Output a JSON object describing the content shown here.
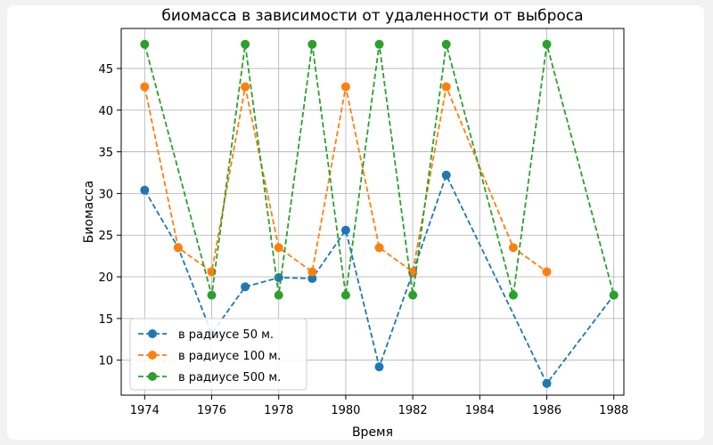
{
  "chart_data": {
    "type": "line",
    "title": "биомасса в зависимости от удаленности от выброса",
    "xlabel": "Время",
    "ylabel": "Биомасса",
    "xlim": [
      1973.3,
      1988.3
    ],
    "ylim": [
      5.8,
      49.8
    ],
    "xticks": [
      1974,
      1976,
      1978,
      1980,
      1982,
      1984,
      1986,
      1988
    ],
    "yticks": [
      10,
      15,
      20,
      25,
      30,
      35,
      40,
      45
    ],
    "grid": true,
    "legend_position": "lower-left",
    "series": [
      {
        "name": "в радиусе 50 м.",
        "color": "#1f77b4",
        "x": [
          1974,
          1975,
          1976,
          1977,
          1978,
          1979,
          1980,
          1981,
          1982,
          1983,
          1986,
          1988
        ],
        "y": [
          30.4,
          23.5,
          13.2,
          18.8,
          19.9,
          19.8,
          25.6,
          9.2,
          20.5,
          32.2,
          7.2,
          17.8
        ]
      },
      {
        "name": "в радиусе 100 м.",
        "color": "#ff7f0e",
        "x": [
          1974,
          1975,
          1976,
          1977,
          1978,
          1979,
          1980,
          1981,
          1982,
          1983,
          1985,
          1986
        ],
        "y": [
          42.8,
          23.5,
          20.6,
          42.8,
          23.5,
          20.6,
          42.8,
          23.5,
          20.6,
          42.8,
          23.5,
          20.6
        ]
      },
      {
        "name": "в радиусе 500 м.",
        "color": "#2ca02c",
        "x": [
          1974,
          1976,
          1977,
          1978,
          1979,
          1980,
          1981,
          1982,
          1983,
          1985,
          1986,
          1988
        ],
        "y": [
          47.9,
          17.8,
          47.9,
          17.8,
          47.9,
          17.8,
          47.9,
          17.8,
          47.9,
          17.8,
          47.9,
          17.8
        ]
      }
    ]
  }
}
